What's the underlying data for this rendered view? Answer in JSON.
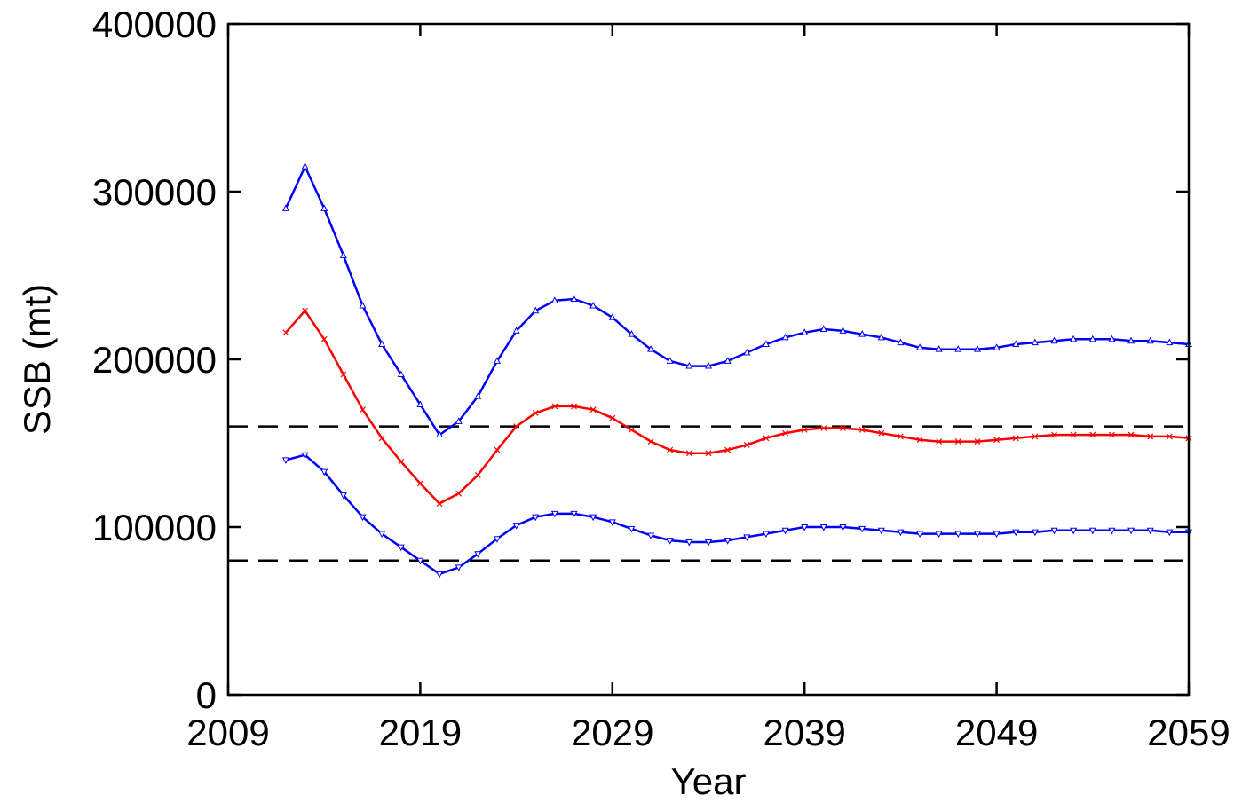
{
  "chart_data": {
    "type": "line",
    "xlabel": "Year",
    "ylabel": "SSB (mt)",
    "xlim": [
      2009,
      2059
    ],
    "ylim": [
      0,
      400000
    ],
    "x_ticks": [
      "2009",
      "2019",
      "2029",
      "2039",
      "2049",
      "2059"
    ],
    "y_ticks": [
      "0",
      "100000",
      "200000",
      "300000",
      "400000"
    ],
    "grid": false,
    "legend": "none",
    "x": [
      2012,
      2013,
      2014,
      2015,
      2016,
      2017,
      2018,
      2019,
      2020,
      2021,
      2022,
      2023,
      2024,
      2025,
      2026,
      2027,
      2028,
      2029,
      2030,
      2031,
      2032,
      2033,
      2034,
      2035,
      2036,
      2037,
      2038,
      2039,
      2040,
      2041,
      2042,
      2043,
      2044,
      2045,
      2046,
      2047,
      2048,
      2049,
      2050,
      2051,
      2052,
      2053,
      2054,
      2055,
      2056,
      2057,
      2058,
      2059
    ],
    "series": [
      {
        "color": "#0000ff",
        "marker": "triangle-up",
        "values": [
          290000,
          315000,
          290000,
          262000,
          232000,
          209000,
          191000,
          173000,
          155000,
          163000,
          178000,
          199000,
          217000,
          229000,
          235000,
          236000,
          232000,
          225000,
          215000,
          206000,
          199000,
          196000,
          196000,
          199000,
          204000,
          209000,
          213000,
          216000,
          218000,
          217000,
          215000,
          213000,
          210000,
          207000,
          206000,
          206000,
          206000,
          207000,
          209000,
          210000,
          211000,
          212000,
          212000,
          212000,
          211000,
          211000,
          210000,
          209000
        ]
      },
      {
        "color": "#ff0000",
        "marker": "x",
        "values": [
          216000,
          229000,
          212000,
          191000,
          170000,
          153000,
          139000,
          126000,
          114000,
          120000,
          131000,
          146000,
          160000,
          168000,
          172000,
          172000,
          170000,
          165000,
          158000,
          151000,
          146000,
          144000,
          144000,
          146000,
          149000,
          153000,
          156000,
          158000,
          159000,
          159000,
          158000,
          156000,
          154000,
          152000,
          151000,
          151000,
          151000,
          152000,
          153000,
          154000,
          155000,
          155000,
          155000,
          155000,
          155000,
          154000,
          154000,
          153000
        ]
      },
      {
        "color": "#0000ff",
        "marker": "triangle-down",
        "values": [
          140000,
          143000,
          133000,
          119000,
          106000,
          96000,
          88000,
          80000,
          72000,
          76000,
          84000,
          93000,
          101000,
          106000,
          108000,
          108000,
          106000,
          103000,
          99000,
          95000,
          92000,
          91000,
          91000,
          92000,
          94000,
          96000,
          98000,
          100000,
          100000,
          100000,
          99000,
          98000,
          97000,
          96000,
          96000,
          96000,
          96000,
          96000,
          97000,
          97000,
          98000,
          98000,
          98000,
          98000,
          98000,
          98000,
          97000,
          97000
        ]
      }
    ],
    "reference_lines": [
      {
        "y": 160000,
        "style": "dashed",
        "color": "#000000"
      },
      {
        "y": 80000,
        "style": "dashed",
        "color": "#000000"
      }
    ]
  }
}
